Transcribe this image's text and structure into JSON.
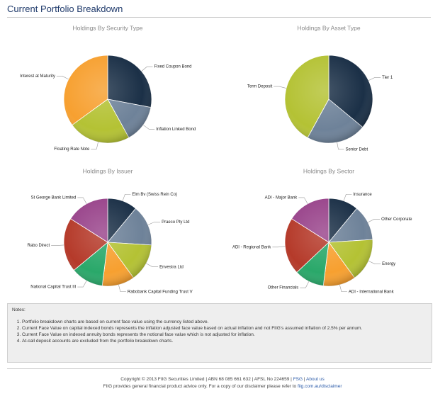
{
  "page_title": "Current Portfolio Breakdown",
  "chart_data": [
    {
      "type": "pie",
      "title": "Holdings By Security Type",
      "categories": [
        "Fixed Coupon Bond",
        "Inflation Linked Bond",
        "Floating Rate Note",
        "Interest at Maturity"
      ],
      "values": [
        28,
        14,
        23,
        35
      ],
      "colors": [
        "#1b3047",
        "#6e8299",
        "#b4c234",
        "#f7a030"
      ]
    },
    {
      "type": "pie",
      "title": "Holdings By Asset Type",
      "categories": [
        "Tier 1",
        "Senior Debt",
        "Term Deposit"
      ],
      "values": [
        36,
        22,
        42
      ],
      "colors": [
        "#1b3047",
        "#6e8299",
        "#b4c234"
      ]
    },
    {
      "type": "pie",
      "title": "Holdings By Issuer",
      "categories": [
        "Elm Bv (Swiss Rein Co)",
        "Praeco Pty Ltd",
        "Envestra Ltd",
        "Rabobank Capital Funding Trust V",
        "National Capital Trust III",
        "Rabo Direct",
        "St George Bank Limited"
      ],
      "values": [
        11,
        15,
        14,
        12,
        12,
        20,
        16
      ],
      "colors": [
        "#1b3047",
        "#6e8299",
        "#b4c234",
        "#f7a030",
        "#2aa86a",
        "#b53a2a",
        "#99448b"
      ]
    },
    {
      "type": "pie",
      "title": "Holdings By Sector",
      "categories": [
        "Insurance",
        "Other Corporate",
        "Energy",
        "ADI - International Bank",
        "Other Financials",
        "ADI - Regional Bank",
        "ADI - Major Bank"
      ],
      "values": [
        11,
        13,
        16,
        12,
        11,
        21,
        16
      ],
      "colors": [
        "#1b3047",
        "#6e8299",
        "#b4c234",
        "#f7a030",
        "#2aa86a",
        "#b53a2a",
        "#99448b"
      ]
    }
  ],
  "notes": {
    "title": "Notes:",
    "items": [
      "Portfolio breakdown charts are based on current face value using the currency listed above.",
      "Current Face Value on capital indexed bonds represents the inflation adjusted face value based on actual inflation and not FIIG's assumed inflation of 2.5% per annum.",
      "Current Face Value on indexed annuity bonds represents the notional face value which is not adjusted for inflation.",
      "At-call deposit accounts are excluded from the portfolio breakdown charts."
    ]
  },
  "footer": {
    "copyright": "Copyright © 2013 FIIG Securities Limited | ABN 68 085 661 632 | AFSL No 224659 |",
    "links": [
      "FSG",
      "About us"
    ],
    "link_separator": "|",
    "advice": "FIIG provides general financial product advice only.  For a copy of our disclaimer please refer to",
    "disclaimer_link": "fiig.com.au/disclaimer"
  }
}
